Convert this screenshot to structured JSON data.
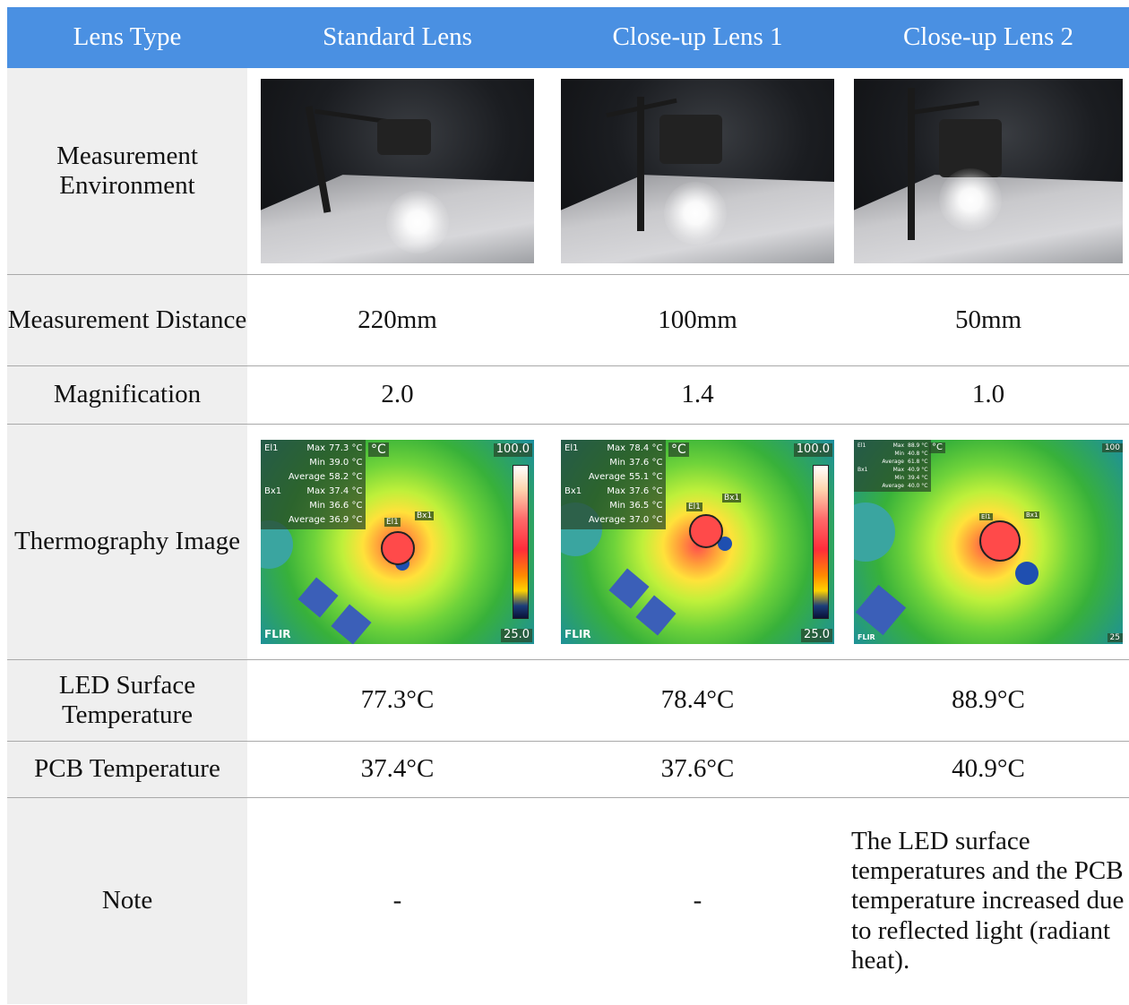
{
  "header": {
    "col0": "Lens Type",
    "col1": "Standard Lens",
    "col2": "Close-up Lens 1",
    "col3": "Close-up Lens 2"
  },
  "rows": {
    "environment": {
      "label": "Measurement Environment"
    },
    "distance": {
      "label": "Measurement Distance",
      "values": [
        "220mm",
        "100mm",
        "50mm"
      ]
    },
    "magnification": {
      "label": "Magnification",
      "values": [
        "2.0",
        "1.4",
        "1.0"
      ]
    },
    "thermography": {
      "label": "Thermography Image"
    },
    "led_temp": {
      "label": "LED Surface Temperature",
      "values": [
        "77.3°C",
        "78.4°C",
        "88.9°C"
      ]
    },
    "pcb_temp": {
      "label": "PCB Temperature",
      "values": [
        "37.4°C",
        "37.6°C",
        "40.9°C"
      ]
    },
    "note": {
      "label": "Note",
      "values": [
        "-",
        "-",
        "The LED surface temperatures and the PCB temperature increased due to reflected light (radiant heat)."
      ]
    }
  },
  "thermal": [
    {
      "info": [
        [
          "El1",
          "Max",
          "77.3 °C"
        ],
        [
          "",
          "Min",
          "39.0 °C"
        ],
        [
          "",
          "Average",
          "58.2 °C"
        ],
        [
          "Bx1",
          "Max",
          "37.4 °C"
        ],
        [
          "",
          "Min",
          "36.6 °C"
        ],
        [
          "",
          "Average",
          "36.9 °C"
        ]
      ],
      "unit": "°C",
      "scale_max": "100.0",
      "scale_min": "25.0",
      "logo": "FLIR",
      "tag_el": "El1",
      "tag_bx": "Bx1"
    },
    {
      "info": [
        [
          "El1",
          "Max",
          "78.4 °C"
        ],
        [
          "",
          "Min",
          "37.6 °C"
        ],
        [
          "",
          "Average",
          "55.1 °C"
        ],
        [
          "Bx1",
          "Max",
          "37.6 °C"
        ],
        [
          "",
          "Min",
          "36.5 °C"
        ],
        [
          "",
          "Average",
          "37.0 °C"
        ]
      ],
      "unit": "°C",
      "scale_max": "100.0",
      "scale_min": "25.0",
      "logo": "FLIR",
      "tag_el": "El1",
      "tag_bx": "Bx1"
    },
    {
      "info": [
        [
          "El1",
          "Max",
          "88.9 °C"
        ],
        [
          "",
          "Min",
          "40.8 °C"
        ],
        [
          "",
          "Average",
          "61.8 °C"
        ],
        [
          "Bx1",
          "Max",
          "40.9 °C"
        ],
        [
          "",
          "Min",
          "39.4 °C"
        ],
        [
          "",
          "Average",
          "40.0 °C"
        ]
      ],
      "unit": "°C",
      "scale_max": "100",
      "scale_min": "25",
      "logo": "FLIR",
      "tag_el": "El1",
      "tag_bx": "Bx1"
    }
  ]
}
